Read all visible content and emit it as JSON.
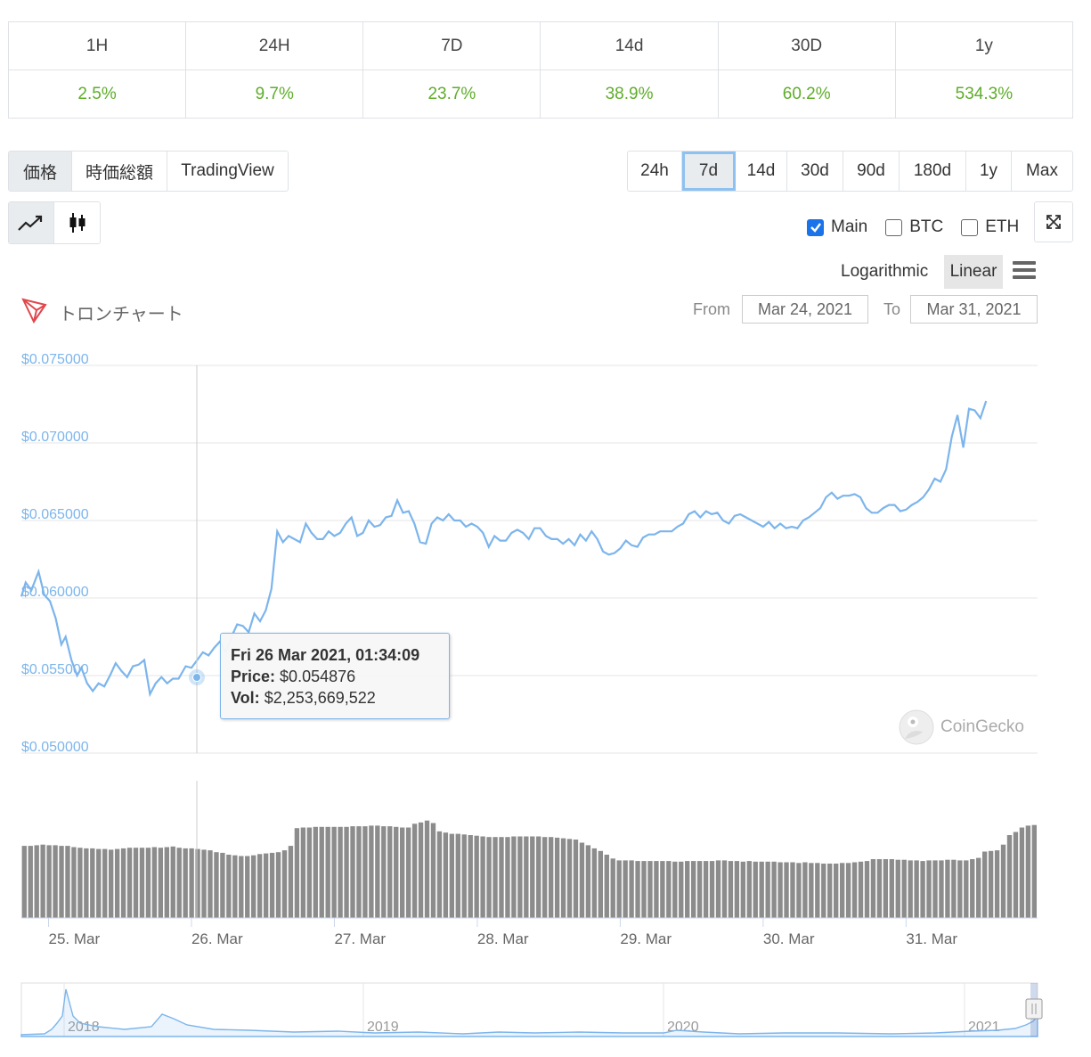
{
  "performance": {
    "headers": [
      "1H",
      "24H",
      "7D",
      "14d",
      "30D",
      "1y"
    ],
    "values": [
      "2.5%",
      "9.7%",
      "23.7%",
      "38.9%",
      "60.2%",
      "534.3%"
    ]
  },
  "view_tabs": [
    "価格",
    "時価総額",
    "TradingView"
  ],
  "range_tabs": [
    "24h",
    "7d",
    "14d",
    "30d",
    "90d",
    "180d",
    "1y",
    "Max"
  ],
  "chart_type_icons": [
    "line-chart-icon",
    "candlestick-icon"
  ],
  "compare": [
    {
      "label": "Main",
      "checked": true
    },
    {
      "label": "BTC",
      "checked": false
    },
    {
      "label": "ETH",
      "checked": false
    }
  ],
  "scale": {
    "log_label": "Logarithmic",
    "linear_label": "Linear"
  },
  "chart_title": "トロンチャート",
  "range": {
    "from_label": "From",
    "from": "Mar 24, 2021",
    "to_label": "To",
    "to": "Mar 31, 2021"
  },
  "tooltip": {
    "date": "Fri 26 Mar 2021, 01:34:09",
    "price_label": "Price:",
    "price": "$0.054876",
    "vol_label": "Vol:",
    "vol": "$2,253,669,522"
  },
  "watermark": "CoinGecko",
  "colors": {
    "line": "#7cb5ec",
    "bar": "#8c8c8c",
    "positive": "#5fad2b",
    "accent": "#1a73e8"
  },
  "chart_data": {
    "type": "line",
    "title": "",
    "y_ticks": [
      "$0.075000",
      "$0.070000",
      "$0.065000",
      "$0.060000",
      "$0.055000",
      "$0.050000"
    ],
    "ylim": [
      0.05,
      0.075
    ],
    "x_ticks": [
      "25. Mar",
      "26. Mar",
      "27. Mar",
      "28. Mar",
      "29. Mar",
      "30. Mar",
      "31. Mar"
    ],
    "x_range_days": [
      24.81,
      31.92
    ],
    "series": [
      {
        "values": [
          [
            24.81,
            0.0601
          ],
          [
            24.84,
            0.061
          ],
          [
            24.88,
            0.0605
          ],
          [
            24.93,
            0.0617
          ],
          [
            24.97,
            0.0602
          ],
          [
            25.01,
            0.0598
          ],
          [
            25.05,
            0.0587
          ],
          [
            25.09,
            0.057
          ],
          [
            25.12,
            0.0575
          ],
          [
            25.16,
            0.056
          ],
          [
            25.2,
            0.055
          ],
          [
            25.23,
            0.0555
          ],
          [
            25.27,
            0.0545
          ],
          [
            25.31,
            0.054
          ],
          [
            25.35,
            0.0545
          ],
          [
            25.39,
            0.0543
          ],
          [
            25.43,
            0.055
          ],
          [
            25.47,
            0.0558
          ],
          [
            25.51,
            0.0553
          ],
          [
            25.55,
            0.0549
          ],
          [
            25.59,
            0.0556
          ],
          [
            25.63,
            0.0557
          ],
          [
            25.67,
            0.056
          ],
          [
            25.71,
            0.0538
          ],
          [
            25.75,
            0.0545
          ],
          [
            25.79,
            0.0549
          ],
          [
            25.83,
            0.0545
          ],
          [
            25.87,
            0.0548
          ],
          [
            25.91,
            0.0548
          ],
          [
            25.96,
            0.0556
          ],
          [
            26.0,
            0.0555
          ],
          [
            26.04,
            0.056
          ],
          [
            26.08,
            0.0565
          ],
          [
            26.12,
            0.0563
          ],
          [
            26.16,
            0.0568
          ],
          [
            26.2,
            0.0572
          ],
          [
            26.24,
            0.0565
          ],
          [
            26.28,
            0.0575
          ],
          [
            26.32,
            0.0583
          ],
          [
            26.36,
            0.0582
          ],
          [
            26.4,
            0.0578
          ],
          [
            26.44,
            0.059
          ],
          [
            26.48,
            0.0585
          ],
          [
            26.52,
            0.0592
          ],
          [
            26.56,
            0.0606
          ],
          [
            26.6,
            0.0643
          ],
          [
            26.64,
            0.0636
          ],
          [
            26.68,
            0.064
          ],
          [
            26.72,
            0.0638
          ],
          [
            26.76,
            0.0636
          ],
          [
            26.8,
            0.0648
          ],
          [
            26.84,
            0.0642
          ],
          [
            26.88,
            0.0638
          ],
          [
            26.92,
            0.0638
          ],
          [
            26.96,
            0.0643
          ],
          [
            27.0,
            0.064
          ],
          [
            27.04,
            0.0642
          ],
          [
            27.08,
            0.0648
          ],
          [
            27.12,
            0.0652
          ],
          [
            27.16,
            0.064
          ],
          [
            27.2,
            0.0642
          ],
          [
            27.24,
            0.065
          ],
          [
            27.28,
            0.0646
          ],
          [
            27.32,
            0.0647
          ],
          [
            27.36,
            0.0652
          ],
          [
            27.4,
            0.0653
          ],
          [
            27.44,
            0.0663
          ],
          [
            27.48,
            0.0655
          ],
          [
            27.52,
            0.0656
          ],
          [
            27.56,
            0.0648
          ],
          [
            27.6,
            0.0636
          ],
          [
            27.64,
            0.0635
          ],
          [
            27.68,
            0.0648
          ],
          [
            27.72,
            0.0652
          ],
          [
            27.76,
            0.065
          ],
          [
            27.8,
            0.0654
          ],
          [
            27.84,
            0.065
          ],
          [
            27.88,
            0.065
          ],
          [
            27.92,
            0.0646
          ],
          [
            27.96,
            0.0648
          ],
          [
            28.0,
            0.0646
          ],
          [
            28.04,
            0.0642
          ],
          [
            28.08,
            0.0633
          ],
          [
            28.12,
            0.064
          ],
          [
            28.16,
            0.0637
          ],
          [
            28.2,
            0.0637
          ],
          [
            28.24,
            0.0642
          ],
          [
            28.28,
            0.0644
          ],
          [
            28.32,
            0.0642
          ],
          [
            28.36,
            0.0638
          ],
          [
            28.4,
            0.0645
          ],
          [
            28.44,
            0.0645
          ],
          [
            28.48,
            0.064
          ],
          [
            28.52,
            0.0638
          ],
          [
            28.56,
            0.0638
          ],
          [
            28.6,
            0.0635
          ],
          [
            28.64,
            0.0638
          ],
          [
            28.68,
            0.0634
          ],
          [
            28.72,
            0.0641
          ],
          [
            28.76,
            0.0637
          ],
          [
            28.8,
            0.0643
          ],
          [
            28.84,
            0.0638
          ],
          [
            28.88,
            0.063
          ],
          [
            28.92,
            0.0628
          ],
          [
            28.96,
            0.0629
          ],
          [
            29.0,
            0.0632
          ],
          [
            29.04,
            0.0637
          ],
          [
            29.08,
            0.0634
          ],
          [
            29.12,
            0.0633
          ],
          [
            29.16,
            0.0639
          ],
          [
            29.2,
            0.0641
          ],
          [
            29.24,
            0.0641
          ],
          [
            29.28,
            0.0643
          ],
          [
            29.32,
            0.0643
          ],
          [
            29.36,
            0.0643
          ],
          [
            29.4,
            0.0646
          ],
          [
            29.44,
            0.0648
          ],
          [
            29.48,
            0.0654
          ],
          [
            29.52,
            0.0656
          ],
          [
            29.56,
            0.0652
          ],
          [
            29.6,
            0.0656
          ],
          [
            29.64,
            0.0654
          ],
          [
            29.68,
            0.0655
          ],
          [
            29.72,
            0.065
          ],
          [
            29.76,
            0.0648
          ],
          [
            29.8,
            0.0653
          ],
          [
            29.84,
            0.0654
          ],
          [
            29.88,
            0.0652
          ],
          [
            29.92,
            0.065
          ],
          [
            29.96,
            0.0648
          ],
          [
            30.0,
            0.0646
          ],
          [
            30.04,
            0.0649
          ],
          [
            30.08,
            0.0645
          ],
          [
            30.12,
            0.0648
          ],
          [
            30.16,
            0.0645
          ],
          [
            30.2,
            0.0646
          ],
          [
            30.24,
            0.0645
          ],
          [
            30.28,
            0.065
          ],
          [
            30.32,
            0.0652
          ],
          [
            30.36,
            0.0655
          ],
          [
            30.4,
            0.0658
          ],
          [
            30.44,
            0.0665
          ],
          [
            30.48,
            0.0668
          ],
          [
            30.52,
            0.0664
          ],
          [
            30.56,
            0.0666
          ],
          [
            30.6,
            0.0666
          ],
          [
            30.64,
            0.0667
          ],
          [
            30.68,
            0.0665
          ],
          [
            30.72,
            0.0658
          ],
          [
            30.76,
            0.0655
          ],
          [
            30.8,
            0.0655
          ],
          [
            30.84,
            0.0658
          ],
          [
            30.88,
            0.066
          ],
          [
            30.92,
            0.066
          ],
          [
            30.96,
            0.0656
          ],
          [
            31.0,
            0.0657
          ],
          [
            31.04,
            0.066
          ],
          [
            31.08,
            0.0662
          ],
          [
            31.12,
            0.0665
          ],
          [
            31.16,
            0.067
          ],
          [
            31.2,
            0.0677
          ],
          [
            31.24,
            0.0675
          ],
          [
            31.28,
            0.0683
          ],
          [
            31.32,
            0.0704
          ],
          [
            31.36,
            0.0718
          ],
          [
            31.4,
            0.0697
          ],
          [
            31.44,
            0.0722
          ],
          [
            31.48,
            0.0721
          ],
          [
            31.52,
            0.0716
          ],
          [
            31.56,
            0.0727
          ]
        ]
      }
    ],
    "volume_series": {
      "name": "Vol",
      "values_billion": [
        2.28,
        2.28,
        2.3,
        2.32,
        2.3,
        2.3,
        2.28,
        2.28,
        2.24,
        2.22,
        2.2,
        2.2,
        2.18,
        2.18,
        2.16,
        2.18,
        2.2,
        2.22,
        2.22,
        2.22,
        2.22,
        2.24,
        2.22,
        2.24,
        2.26,
        2.22,
        2.2,
        2.2,
        2.18,
        2.16,
        2.14,
        2.08,
        2.06,
        2.0,
        1.98,
        1.96,
        1.96,
        1.98,
        2.02,
        2.04,
        2.06,
        2.08,
        2.14,
        2.28,
        2.84,
        2.86,
        2.86,
        2.88,
        2.88,
        2.88,
        2.88,
        2.88,
        2.88,
        2.9,
        2.9,
        2.9,
        2.92,
        2.92,
        2.9,
        2.9,
        2.88,
        2.86,
        2.86,
        2.98,
        3.02,
        3.08,
        3.0,
        2.74,
        2.7,
        2.66,
        2.66,
        2.64,
        2.62,
        2.6,
        2.58,
        2.56,
        2.56,
        2.56,
        2.56,
        2.58,
        2.58,
        2.58,
        2.58,
        2.58,
        2.56,
        2.56,
        2.54,
        2.52,
        2.5,
        2.48,
        2.38,
        2.3,
        2.2,
        2.12,
        2.0,
        1.88,
        1.82,
        1.82,
        1.82,
        1.8,
        1.8,
        1.8,
        1.8,
        1.8,
        1.8,
        1.78,
        1.78,
        1.8,
        1.8,
        1.8,
        1.8,
        1.8,
        1.82,
        1.82,
        1.8,
        1.8,
        1.78,
        1.8,
        1.78,
        1.78,
        1.78,
        1.78,
        1.76,
        1.76,
        1.76,
        1.74,
        1.76,
        1.74,
        1.74,
        1.72,
        1.72,
        1.72,
        1.74,
        1.74,
        1.76,
        1.78,
        1.8,
        1.86,
        1.86,
        1.86,
        1.86,
        1.84,
        1.84,
        1.82,
        1.82,
        1.8,
        1.82,
        1.82,
        1.82,
        1.84,
        1.84,
        1.82,
        1.82,
        1.86,
        1.9,
        2.1,
        2.12,
        2.14,
        2.32,
        2.62,
        2.72,
        2.86,
        2.92,
        2.94
      ]
    },
    "navigator": {
      "x_ticks": [
        "2018",
        "2019",
        "2020",
        "2021"
      ]
    },
    "grid": true,
    "legend": "none"
  }
}
